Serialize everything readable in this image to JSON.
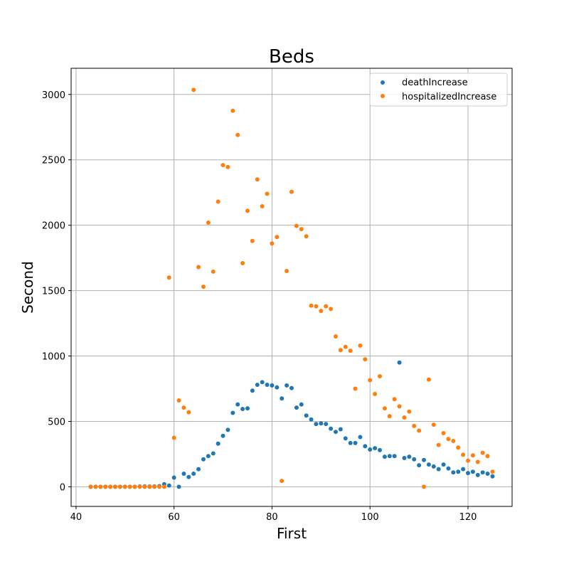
{
  "chart_data": {
    "type": "scatter",
    "title": "Beds",
    "xlabel": "First",
    "ylabel": "Second",
    "xlim": [
      39,
      129
    ],
    "ylim": [
      -150,
      3200
    ],
    "xticks": [
      40,
      60,
      80,
      100,
      120
    ],
    "yticks": [
      0,
      500,
      1000,
      1500,
      2000,
      2500,
      3000
    ],
    "grid": true,
    "legend_position": "top-right",
    "series": [
      {
        "name": "deathIncrease",
        "color": "#1f77b4",
        "points": [
          [
            43,
            0
          ],
          [
            44,
            0
          ],
          [
            45,
            0
          ],
          [
            46,
            0
          ],
          [
            47,
            0
          ],
          [
            48,
            0
          ],
          [
            49,
            0
          ],
          [
            50,
            0
          ],
          [
            51,
            0
          ],
          [
            52,
            0
          ],
          [
            53,
            2
          ],
          [
            54,
            3
          ],
          [
            55,
            2
          ],
          [
            56,
            3
          ],
          [
            57,
            5
          ],
          [
            58,
            20
          ],
          [
            59,
            10
          ],
          [
            60,
            70
          ],
          [
            61,
            0
          ],
          [
            62,
            100
          ],
          [
            63,
            75
          ],
          [
            64,
            100
          ],
          [
            65,
            135
          ],
          [
            66,
            210
          ],
          [
            67,
            235
          ],
          [
            68,
            255
          ],
          [
            69,
            330
          ],
          [
            70,
            390
          ],
          [
            71,
            435
          ],
          [
            72,
            565
          ],
          [
            73,
            630
          ],
          [
            74,
            595
          ],
          [
            75,
            600
          ],
          [
            76,
            735
          ],
          [
            77,
            780
          ],
          [
            78,
            800
          ],
          [
            79,
            780
          ],
          [
            80,
            775
          ],
          [
            81,
            760
          ],
          [
            82,
            675
          ],
          [
            83,
            775
          ],
          [
            84,
            755
          ],
          [
            85,
            605
          ],
          [
            86,
            630
          ],
          [
            87,
            545
          ],
          [
            88,
            515
          ],
          [
            89,
            480
          ],
          [
            90,
            485
          ],
          [
            91,
            480
          ],
          [
            92,
            445
          ],
          [
            93,
            420
          ],
          [
            94,
            440
          ],
          [
            95,
            370
          ],
          [
            96,
            335
          ],
          [
            97,
            335
          ],
          [
            98,
            380
          ],
          [
            99,
            310
          ],
          [
            100,
            285
          ],
          [
            101,
            295
          ],
          [
            102,
            280
          ],
          [
            103,
            230
          ],
          [
            104,
            235
          ],
          [
            105,
            235
          ],
          [
            106,
            950
          ],
          [
            107,
            220
          ],
          [
            108,
            230
          ],
          [
            109,
            210
          ],
          [
            110,
            165
          ],
          [
            111,
            205
          ],
          [
            112,
            170
          ],
          [
            113,
            155
          ],
          [
            114,
            135
          ],
          [
            115,
            170
          ],
          [
            116,
            140
          ],
          [
            117,
            110
          ],
          [
            118,
            115
          ],
          [
            119,
            135
          ],
          [
            120,
            105
          ],
          [
            121,
            115
          ],
          [
            122,
            90
          ],
          [
            123,
            110
          ],
          [
            124,
            100
          ],
          [
            125,
            80
          ]
        ]
      },
      {
        "name": "hospitalizedIncrease",
        "color": "#ff7f0e",
        "points": [
          [
            43,
            0
          ],
          [
            44,
            0
          ],
          [
            45,
            0
          ],
          [
            46,
            0
          ],
          [
            47,
            0
          ],
          [
            48,
            0
          ],
          [
            49,
            0
          ],
          [
            50,
            0
          ],
          [
            51,
            0
          ],
          [
            52,
            0
          ],
          [
            53,
            0
          ],
          [
            54,
            0
          ],
          [
            55,
            0
          ],
          [
            56,
            0
          ],
          [
            57,
            0
          ],
          [
            58,
            0
          ],
          [
            59,
            1600
          ],
          [
            60,
            375
          ],
          [
            61,
            660
          ],
          [
            62,
            605
          ],
          [
            63,
            570
          ],
          [
            64,
            3035
          ],
          [
            65,
            1680
          ],
          [
            66,
            1530
          ],
          [
            67,
            2020
          ],
          [
            68,
            1645
          ],
          [
            69,
            2180
          ],
          [
            70,
            2460
          ],
          [
            71,
            2445
          ],
          [
            72,
            2875
          ],
          [
            73,
            2690
          ],
          [
            74,
            1710
          ],
          [
            75,
            2110
          ],
          [
            76,
            1880
          ],
          [
            77,
            2350
          ],
          [
            78,
            2145
          ],
          [
            79,
            2240
          ],
          [
            80,
            1860
          ],
          [
            81,
            1910
          ],
          [
            82,
            45
          ],
          [
            83,
            1650
          ],
          [
            84,
            2255
          ],
          [
            85,
            1995
          ],
          [
            86,
            1970
          ],
          [
            87,
            1915
          ],
          [
            88,
            1385
          ],
          [
            89,
            1380
          ],
          [
            90,
            1345
          ],
          [
            91,
            1380
          ],
          [
            92,
            1360
          ],
          [
            93,
            1150
          ],
          [
            94,
            1045
          ],
          [
            95,
            1070
          ],
          [
            96,
            1040
          ],
          [
            97,
            750
          ],
          [
            98,
            1080
          ],
          [
            99,
            975
          ],
          [
            100,
            815
          ],
          [
            101,
            710
          ],
          [
            102,
            845
          ],
          [
            103,
            600
          ],
          [
            104,
            540
          ],
          [
            105,
            670
          ],
          [
            106,
            615
          ],
          [
            107,
            530
          ],
          [
            108,
            575
          ],
          [
            109,
            465
          ],
          [
            110,
            430
          ],
          [
            111,
            0
          ],
          [
            112,
            820
          ],
          [
            113,
            475
          ],
          [
            114,
            320
          ],
          [
            115,
            410
          ],
          [
            116,
            365
          ],
          [
            117,
            350
          ],
          [
            118,
            300
          ],
          [
            119,
            245
          ],
          [
            120,
            200
          ],
          [
            121,
            240
          ],
          [
            122,
            190
          ],
          [
            123,
            260
          ],
          [
            124,
            235
          ],
          [
            125,
            115
          ]
        ]
      }
    ]
  }
}
